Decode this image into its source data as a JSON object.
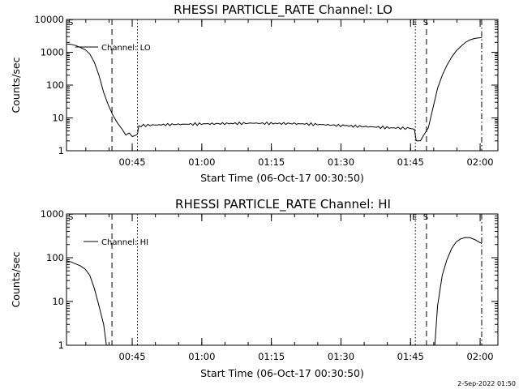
{
  "chart_data": [
    {
      "type": "line",
      "title": "RHESSI PARTICLE_RATE Channel: LO",
      "xlabel": "Start Time (06-Oct-17 00:30:50)",
      "ylabel": "Counts/sec",
      "yscale": "log",
      "ylim": [
        1,
        10000
      ],
      "xlim_minutes": [
        0,
        93
      ],
      "y_tick_labels": [
        "1",
        "10",
        "100",
        "1000",
        "10000"
      ],
      "x_tick_labels": [
        "00:45",
        "01:00",
        "01:15",
        "01:30",
        "01:45",
        "02:00"
      ],
      "legend_label": "Channel: LO",
      "legend_position": "top-left",
      "markers": [
        {
          "label": "S",
          "time_min": 0.0,
          "style": "dashdot"
        },
        {
          "label": "",
          "time_min": 9.8,
          "style": "dashed"
        },
        {
          "label": "",
          "time_min": 15.3,
          "style": "dotted"
        },
        {
          "label": "E",
          "time_min": 75.2,
          "style": "dotted"
        },
        {
          "label": "S",
          "time_min": 77.6,
          "style": "dashed"
        },
        {
          "label": "",
          "time_min": 89.5,
          "style": "dashdot"
        }
      ],
      "series": [
        {
          "points": [
            [
              0,
              1800
            ],
            [
              1,
              1750
            ],
            [
              2,
              1600
            ],
            [
              3,
              1400
            ],
            [
              4,
              1200
            ],
            [
              5,
              900
            ],
            [
              6,
              500
            ],
            [
              7,
              200
            ],
            [
              8,
              60
            ],
            [
              9,
              25
            ],
            [
              10,
              12
            ],
            [
              11,
              7
            ],
            [
              12,
              4.5
            ],
            [
              12.8,
              3
            ],
            [
              13.5,
              3.5
            ],
            [
              14.2,
              2.7
            ],
            [
              15,
              3
            ],
            [
              15.3,
              3.2
            ],
            [
              15.6,
              5.8
            ],
            [
              20,
              6.2
            ],
            [
              30,
              6.6
            ],
            [
              40,
              6.9
            ],
            [
              50,
              6.7
            ],
            [
              60,
              5.8
            ],
            [
              70,
              5.0
            ],
            [
              74,
              4.8
            ],
            [
              75,
              4.5
            ],
            [
              75.4,
              2.0
            ],
            [
              76.3,
              2.0
            ],
            [
              77,
              3.0
            ],
            [
              78,
              5
            ],
            [
              79,
              20
            ],
            [
              80,
              80
            ],
            [
              81,
              200
            ],
            [
              82,
              400
            ],
            [
              83,
              700
            ],
            [
              84,
              1100
            ],
            [
              85,
              1500
            ],
            [
              86,
              2000
            ],
            [
              87,
              2400
            ],
            [
              88,
              2650
            ],
            [
              89.5,
              2800
            ]
          ]
        }
      ]
    },
    {
      "type": "line",
      "title": "RHESSI PARTICLE_RATE Channel: HI",
      "xlabel": "Start Time (06-Oct-17 00:30:50)",
      "ylabel": "Counts/sec",
      "yscale": "log",
      "ylim": [
        1,
        1000
      ],
      "xlim_minutes": [
        0,
        93
      ],
      "y_tick_labels": [
        "1",
        "10",
        "100",
        "1000"
      ],
      "x_tick_labels": [
        "00:45",
        "01:00",
        "01:15",
        "01:30",
        "01:45",
        "02:00"
      ],
      "legend_label": "Channel: HI",
      "legend_position": "top-left",
      "markers": [
        {
          "label": "S",
          "time_min": 0.0,
          "style": "dashdot"
        },
        {
          "label": "",
          "time_min": 9.8,
          "style": "dashed"
        },
        {
          "label": "",
          "time_min": 15.3,
          "style": "dotted"
        },
        {
          "label": "E",
          "time_min": 75.2,
          "style": "dotted"
        },
        {
          "label": "S",
          "time_min": 77.6,
          "style": "dashed"
        },
        {
          "label": "",
          "time_min": 89.5,
          "style": "dashdot"
        }
      ],
      "series": [
        {
          "points_segments": [
            [
              [
                0,
                85
              ],
              [
                1,
                80
              ],
              [
                2,
                72
              ],
              [
                3,
                65
              ],
              [
                4,
                55
              ],
              [
                5,
                40
              ],
              [
                6,
                20
              ],
              [
                7,
                8
              ],
              [
                8,
                3
              ],
              [
                8.6,
                1
              ]
            ],
            [
              [
                79.4,
                1
              ],
              [
                80,
                8
              ],
              [
                81,
                40
              ],
              [
                82,
                90
              ],
              [
                83,
                160
              ],
              [
                84,
                230
              ],
              [
                85,
                270
              ],
              [
                86,
                290
              ],
              [
                87,
                285
              ],
              [
                88,
                260
              ],
              [
                89.5,
                210
              ]
            ]
          ]
        }
      ]
    }
  ],
  "footer_stamp": "2-Sep-2022 01:50"
}
